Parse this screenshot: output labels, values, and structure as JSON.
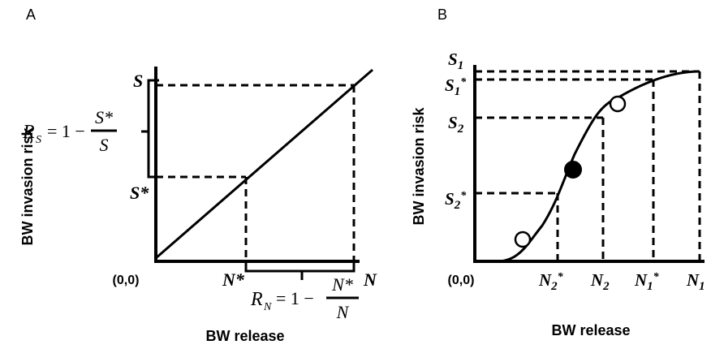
{
  "panelA": {
    "label": "A",
    "y_title": "BW invasion risk",
    "x_title": "BW release",
    "origin": "(0,0)",
    "S": "S",
    "S_star": "S*",
    "N": "N",
    "N_star": "N*",
    "formula_RS": {
      "lhs": "R",
      "sub": "S",
      "eq": "= 1 −",
      "num": "S*",
      "den": "S"
    },
    "formula_RN": {
      "lhs": "R",
      "sub": "N",
      "eq": "= 1 −",
      "num": "N*",
      "den": "N"
    }
  },
  "panelB": {
    "label": "B",
    "y_title": "BW invasion risk",
    "x_title": "BW release",
    "origin": "(0,0)",
    "y_labels": [
      "S1",
      "S1*",
      "S2",
      "S2*"
    ],
    "x_labels": [
      "N2*",
      "N2",
      "N1*",
      "N1"
    ]
  }
}
